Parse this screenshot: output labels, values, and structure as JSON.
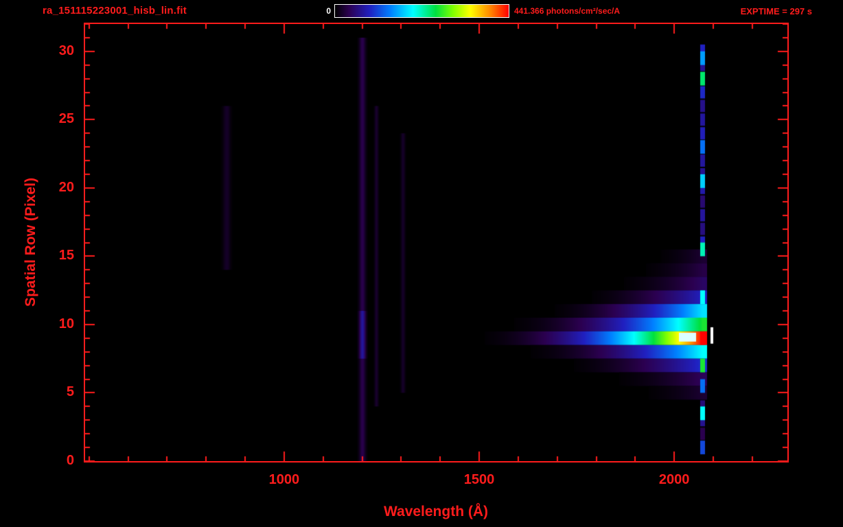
{
  "header": {
    "filename": "ra_151115223001_hisb_lin.fit",
    "colorbar_min": "0",
    "colorbar_max": "441.366 photons/cm²/sec/A",
    "exptime": "EXPTIME = 297 s"
  },
  "chart_data": {
    "type": "heatmap",
    "title": "ra_151115223001_hisb_lin.fit",
    "xlabel": "Wavelength (Å)",
    "ylabel": "Spatial Row (Pixel)",
    "xlim": [
      490,
      2290
    ],
    "ylim": [
      0,
      32
    ],
    "x_ticks": [
      1000,
      1500,
      2000
    ],
    "x_minor_step": 100,
    "y_ticks": [
      0,
      5,
      10,
      15,
      20,
      25,
      30
    ],
    "y_minor_step": 1,
    "grid": false,
    "background": "#000000",
    "axis_color": "#ff1c1c",
    "colorbar": {
      "min": 0,
      "max": 441.366,
      "units": "photons/cm²/sec/A",
      "stops": [
        {
          "p": 0.0,
          "c": "#000000"
        },
        {
          "p": 0.08,
          "c": "#2b0050"
        },
        {
          "p": 0.2,
          "c": "#2020c0"
        },
        {
          "p": 0.32,
          "c": "#0080ff"
        },
        {
          "p": 0.45,
          "c": "#00ffff"
        },
        {
          "p": 0.58,
          "c": "#00e040"
        },
        {
          "p": 0.68,
          "c": "#80ff00"
        },
        {
          "p": 0.78,
          "c": "#ffff00"
        },
        {
          "p": 0.9,
          "c": "#ff8000"
        },
        {
          "p": 1.0,
          "c": "#ff0000"
        }
      ]
    },
    "trace_rows": [
      {
        "row": 15,
        "start": 1920,
        "end": 2082,
        "peak": 0.05,
        "gamma": 2.0
      },
      {
        "row": 14,
        "start": 1880,
        "end": 2082,
        "peak": 0.07,
        "gamma": 2.0
      },
      {
        "row": 13,
        "start": 1820,
        "end": 2082,
        "peak": 0.1,
        "gamma": 2.0
      },
      {
        "row": 12,
        "start": 1740,
        "end": 2082,
        "peak": 0.2,
        "gamma": 2.0
      },
      {
        "row": 11,
        "start": 1640,
        "end": 2082,
        "peak": 0.42,
        "gamma": 2.2
      },
      {
        "row": 10,
        "start": 1520,
        "end": 2082,
        "peak": 0.6,
        "gamma": 2.4
      },
      {
        "row": 9,
        "start": 1450,
        "end": 2082,
        "peak": 1.0,
        "gamma": 2.4
      },
      {
        "row": 8,
        "start": 1560,
        "end": 2082,
        "peak": 0.45,
        "gamma": 2.4
      },
      {
        "row": 7,
        "start": 1690,
        "end": 2082,
        "peak": 0.22,
        "gamma": 2.0
      },
      {
        "row": 6,
        "start": 1800,
        "end": 2082,
        "peak": 0.09,
        "gamma": 2.0
      },
      {
        "row": 5,
        "start": 1880,
        "end": 2082,
        "peak": 0.05,
        "gamma": 2.0
      }
    ],
    "vertical_bands": [
      {
        "wavelength": 852,
        "width": 30,
        "rows": [
          14,
          26
        ],
        "intensity": 0.04
      },
      {
        "wavelength": 1200,
        "width": 26,
        "rows": [
          0,
          31
        ],
        "intensity": 0.075,
        "spots": [
          {
            "row_range": [
              7.5,
              11
            ],
            "intensity": 0.16
          }
        ]
      },
      {
        "wavelength": 1236,
        "width": 16,
        "rows": [
          4,
          26
        ],
        "intensity": 0.045
      },
      {
        "wavelength": 1304,
        "width": 18,
        "rows": [
          5,
          24
        ],
        "intensity": 0.04
      }
    ],
    "emission_line": {
      "wavelength": 2072,
      "width": 12,
      "rows": [
        0.5,
        30
      ],
      "base_intensity": 0.14,
      "bright_spots": [
        {
          "row": 30,
          "intensity": 0.2
        },
        {
          "row": 29.5,
          "intensity": 0.35
        },
        {
          "row": 28,
          "intensity": 0.55
        },
        {
          "row": 23,
          "intensity": 0.3
        },
        {
          "row": 20.5,
          "intensity": 0.4
        },
        {
          "row": 15.5,
          "intensity": 0.5
        },
        {
          "row": 12,
          "intensity": 0.45
        },
        {
          "row": 9,
          "intensity": 1.0
        },
        {
          "row": 7,
          "intensity": 0.6
        },
        {
          "row": 5.5,
          "intensity": 0.3
        },
        {
          "row": 3.5,
          "intensity": 0.45
        },
        {
          "row": 1,
          "intensity": 0.25
        }
      ]
    },
    "saturated_marks": [
      {
        "wavelength_range": [
          2012,
          2056
        ],
        "row_range": [
          8.75,
          9.4
        ],
        "color": "#dbffff"
      },
      {
        "wavelength_range": [
          2093,
          2100
        ],
        "row_range": [
          8.6,
          9.8
        ],
        "color": "#ffffff"
      }
    ]
  }
}
